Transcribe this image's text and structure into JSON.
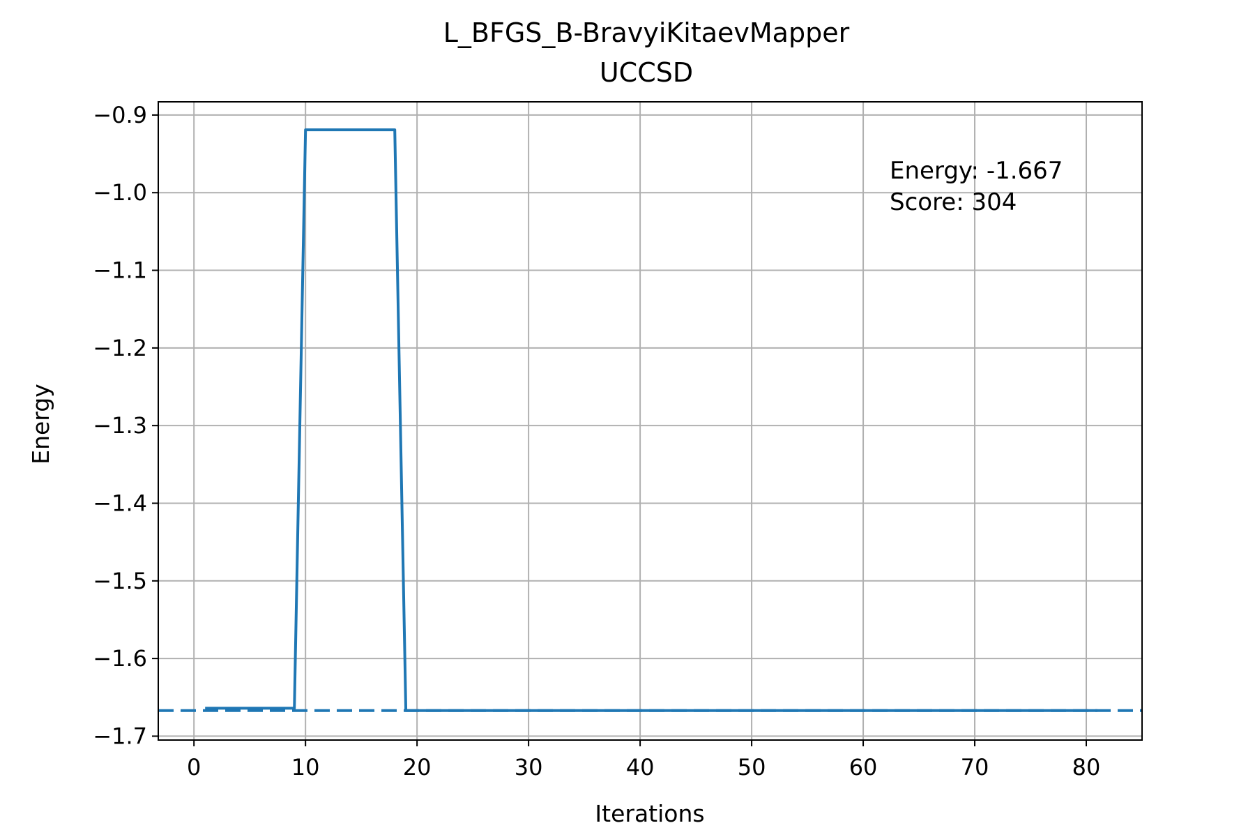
{
  "chart_data": {
    "type": "line",
    "title": "L_BFGS_B-BravyiKitaevMapper",
    "subtitle": "UCCSD",
    "xlabel": "Iterations",
    "ylabel": "Energy",
    "xlim": [
      -3.2,
      85
    ],
    "ylim": [
      -1.705,
      -0.883
    ],
    "xticks": [
      0,
      10,
      20,
      30,
      40,
      50,
      60,
      70,
      80
    ],
    "yticks": [
      -0.9,
      -1.0,
      -1.1,
      -1.2,
      -1.3,
      -1.4,
      -1.5,
      -1.6,
      -1.7
    ],
    "grid": true,
    "line_color": "#1f77b4",
    "series": [
      {
        "x": [
          1,
          9,
          10,
          18,
          19,
          20,
          30,
          40,
          50,
          60,
          70,
          80,
          81
        ],
        "values": [
          -1.664,
          -1.664,
          -0.919,
          -0.919,
          -1.667,
          -1.667,
          -1.667,
          -1.667,
          -1.667,
          -1.667,
          -1.667,
          -1.667,
          -1.667
        ]
      }
    ],
    "reference_line": {
      "y": -1.667,
      "style": "dashed"
    },
    "annotations": [
      "Energy: -1.667",
      "Score: 304"
    ]
  }
}
